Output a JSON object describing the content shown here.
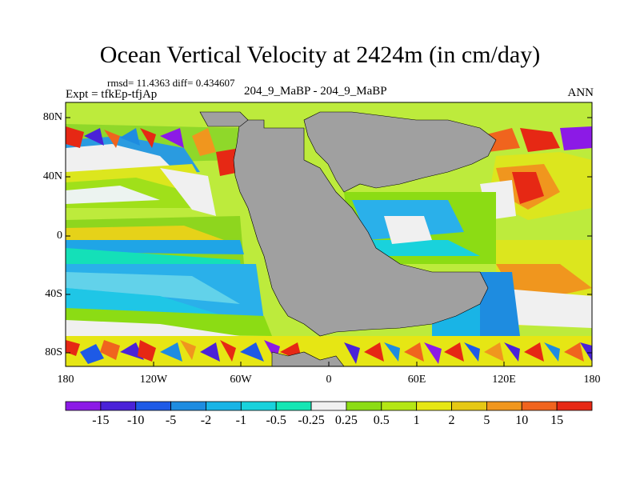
{
  "title": "Ocean Vertical Velocity at 2424m (in cm/day)",
  "stats": "rmsd= 11.4363 diff= 0.434607",
  "experiment": "Expt = tfkEp-tfjAp",
  "case": "204_9_MaBP - 204_9_MaBP",
  "season": "ANN",
  "land_color": "#a0a0a0",
  "y_ticks": [
    "80N",
    "40N",
    "0",
    "40S",
    "80S"
  ],
  "x_ticks": [
    "180",
    "120W",
    "60W",
    "0",
    "60E",
    "120E",
    "180"
  ],
  "colorbar": {
    "labels": [
      "-15",
      "-10",
      "-5",
      "-2",
      "-1",
      "-0.5",
      "-0.25",
      "0.25",
      "0.5",
      "1",
      "2",
      "5",
      "10",
      "15"
    ],
    "colors": [
      "#8c1ae6",
      "#4a22d8",
      "#1e5ae6",
      "#1e8ce0",
      "#19b4e6",
      "#19d2dc",
      "#14e6b4",
      "#f0f0f0",
      "#8cdc14",
      "#b4e614",
      "#e6e614",
      "#e6c814",
      "#f0961e",
      "#f0641e",
      "#e62814"
    ]
  }
}
